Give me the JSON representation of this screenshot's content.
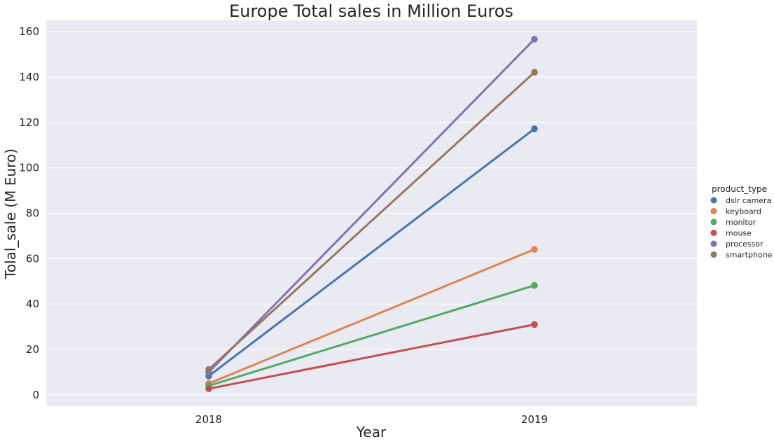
{
  "chart_data": {
    "type": "line",
    "title": "Europe Total sales in Million Euros",
    "xlabel": "Year",
    "ylabel": "Tolal_sale (M Euro)",
    "categories": [
      "2018",
      "2019"
    ],
    "ylim": [
      -5,
      165
    ],
    "yticks": [
      0,
      20,
      40,
      60,
      80,
      100,
      120,
      140,
      160
    ],
    "grid": true,
    "legend": {
      "title": "product_type",
      "placement": "right"
    },
    "series": [
      {
        "name": "dslr camera",
        "color": "#4c72b0",
        "values": [
          8.3,
          117.2
        ]
      },
      {
        "name": "keyboard",
        "color": "#dd8452",
        "values": [
          5.0,
          64.1
        ]
      },
      {
        "name": "monitor",
        "color": "#55a868",
        "values": [
          4.0,
          48.2
        ]
      },
      {
        "name": "mouse",
        "color": "#c44e52",
        "values": [
          2.7,
          31.0
        ]
      },
      {
        "name": "processor",
        "color": "#8172b3",
        "values": [
          10.0,
          156.7
        ]
      },
      {
        "name": "smartphone",
        "color": "#937860",
        "values": [
          11.2,
          142.1
        ]
      }
    ]
  }
}
